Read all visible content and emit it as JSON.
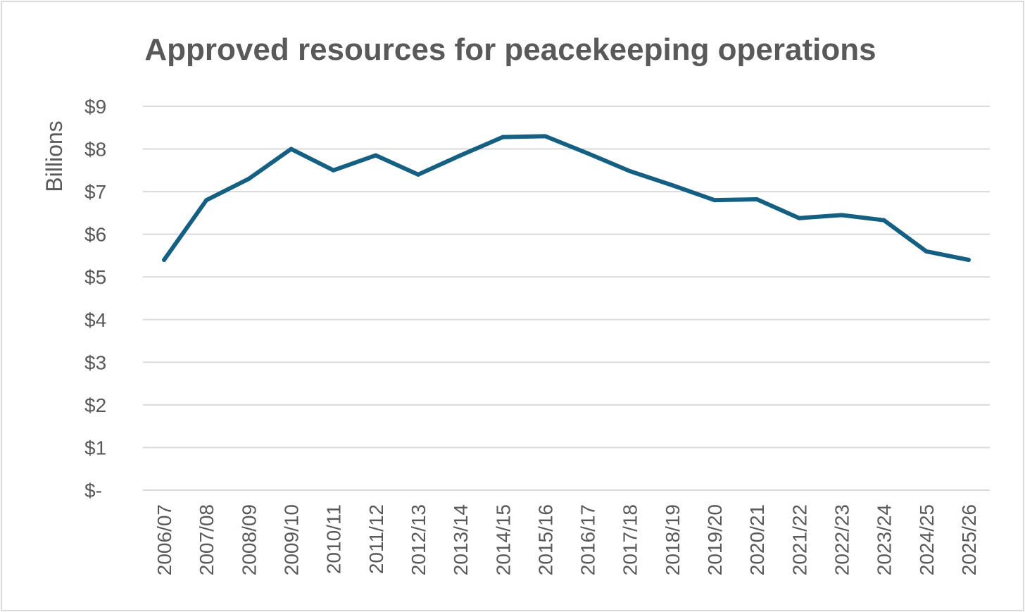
{
  "chart_data": {
    "type": "line",
    "title": "Approved resources for peacekeeping operations",
    "xlabel": "",
    "ylabel": "Billions",
    "categories": [
      "2006/07",
      "2007/08",
      "2008/09",
      "2009/10",
      "2010/11",
      "2011/12",
      "2012/13",
      "2013/14",
      "2014/15",
      "2015/16",
      "2016/17",
      "2017/18",
      "2018/19",
      "2019/20",
      "2020/21",
      "2021/22",
      "2022/23",
      "2023/24",
      "2024/25",
      "2025/26"
    ],
    "series": [
      {
        "values": [
          5.4,
          6.8,
          7.3,
          8.0,
          7.5,
          7.85,
          7.4,
          7.85,
          8.28,
          8.3,
          7.9,
          7.48,
          7.15,
          6.8,
          6.82,
          6.38,
          6.45,
          6.33,
          5.6,
          5.4
        ]
      }
    ],
    "ylim": [
      0,
      9
    ],
    "yticks": [
      0,
      1,
      2,
      3,
      4,
      5,
      6,
      7,
      8,
      9
    ],
    "ytick_labels": [
      "$-",
      "$1",
      "$2",
      "$3",
      "$4",
      "$5",
      "$6",
      "$7",
      "$8",
      "$9"
    ],
    "grid": true,
    "legend": "none",
    "colors": {
      "line": "#156082",
      "grid": "#d9d9d9",
      "text": "#595959"
    }
  }
}
